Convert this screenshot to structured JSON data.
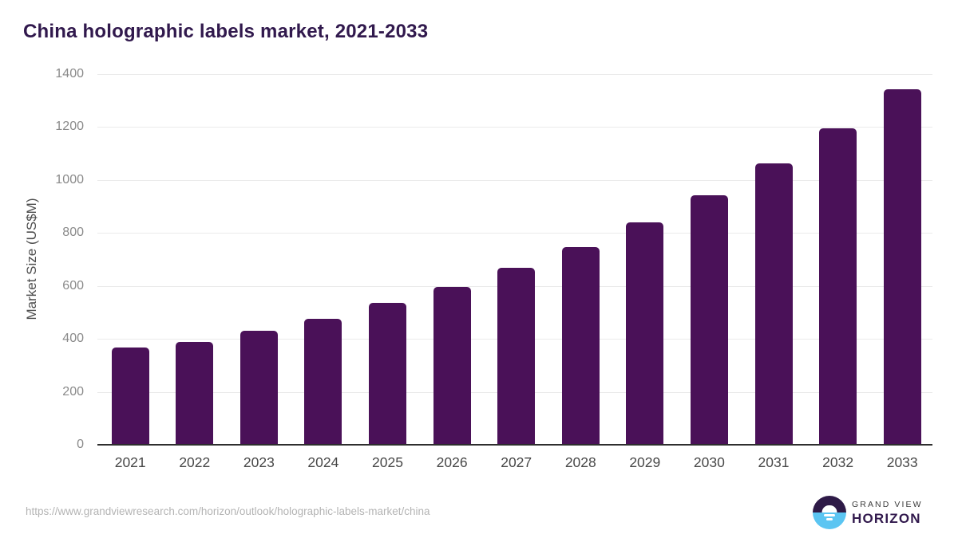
{
  "title": "China holographic labels market, 2021-2033",
  "chart_data": {
    "type": "bar",
    "title": "China holographic labels market, 2021-2033",
    "categories": [
      "2021",
      "2022",
      "2023",
      "2024",
      "2025",
      "2026",
      "2027",
      "2028",
      "2029",
      "2030",
      "2031",
      "2032",
      "2033"
    ],
    "values": [
      368,
      390,
      430,
      477,
      535,
      597,
      668,
      748,
      840,
      944,
      1062,
      1194,
      1344
    ],
    "xlabel": "",
    "ylabel": "Market Size (US$M)",
    "ylim": [
      0,
      1400
    ],
    "yticks": [
      0,
      200,
      400,
      600,
      800,
      1000,
      1200,
      1400
    ],
    "grid": true,
    "legend": "none",
    "bar_color": "#4a1158"
  },
  "footer": {
    "source_url": "https://www.grandviewresearch.com/horizon/outlook/holographic-labels-market/china",
    "logo": {
      "line1": "GRAND VIEW",
      "line2": "HORIZON",
      "icon": "grandview-horizon-sunrise-icon"
    }
  },
  "colors": {
    "title_text": "#31194d",
    "bar": "#4a1158",
    "gridline": "#eaeaea",
    "axis_line": "#2e2e2e",
    "y_tick_text": "#8a8a8a",
    "x_tick_text": "#484848",
    "source_text": "#b4b4b4",
    "logo_blue": "#5bc5f2",
    "logo_dark": "#2e1a47"
  }
}
